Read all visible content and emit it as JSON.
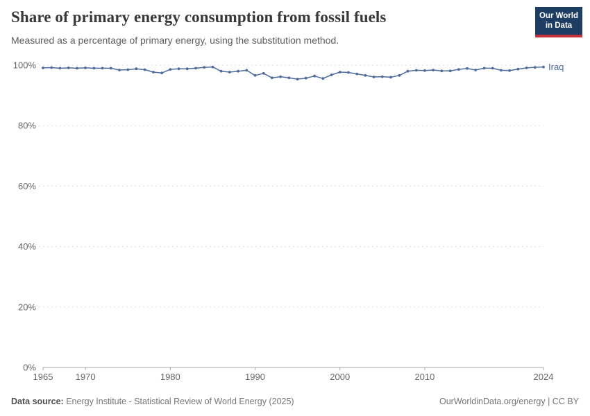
{
  "chart_data": {
    "type": "line",
    "title": "Share of primary energy consumption from fossil fuels",
    "subtitle": "Measured as a percentage of primary energy, using the substitution method.",
    "xlabel": "",
    "ylabel": "",
    "xlim": [
      1965,
      2024
    ],
    "ylim": [
      0,
      100
    ],
    "yticks": [
      0,
      20,
      40,
      60,
      80,
      100
    ],
    "ytick_labels": [
      "0%",
      "20%",
      "40%",
      "60%",
      "80%",
      "100%"
    ],
    "xticks": [
      1965,
      1970,
      1980,
      1990,
      2000,
      2010,
      2024
    ],
    "grid": "horizontal-dashed",
    "legend": "inline-end-label",
    "series": [
      {
        "name": "Iraq",
        "color": "#4c6a9c",
        "x": [
          1965,
          1966,
          1967,
          1968,
          1969,
          1970,
          1971,
          1972,
          1973,
          1974,
          1975,
          1976,
          1977,
          1978,
          1979,
          1980,
          1981,
          1982,
          1983,
          1984,
          1985,
          1986,
          1987,
          1988,
          1989,
          1990,
          1991,
          1992,
          1993,
          1994,
          1995,
          1996,
          1997,
          1998,
          1999,
          2000,
          2001,
          2002,
          2003,
          2004,
          2005,
          2006,
          2007,
          2008,
          2009,
          2010,
          2011,
          2012,
          2013,
          2014,
          2015,
          2016,
          2017,
          2018,
          2019,
          2020,
          2021,
          2022,
          2023,
          2024
        ],
        "values": [
          99.1,
          99.2,
          99.0,
          99.1,
          99.0,
          99.1,
          99.0,
          99.0,
          99.0,
          98.4,
          98.5,
          98.8,
          98.5,
          97.7,
          97.4,
          98.6,
          98.8,
          98.8,
          99.0,
          99.3,
          99.4,
          98.0,
          97.7,
          98.0,
          98.3,
          96.6,
          97.3,
          95.8,
          96.2,
          95.8,
          95.4,
          95.7,
          96.4,
          95.6,
          96.8,
          97.7,
          97.6,
          97.1,
          96.6,
          96.1,
          96.2,
          96.0,
          96.6,
          98.0,
          98.3,
          98.2,
          98.4,
          98.1,
          98.1,
          98.6,
          98.9,
          98.4,
          99.0,
          99.0,
          98.3,
          98.2,
          98.7,
          99.1,
          99.3,
          99.4
        ]
      }
    ]
  },
  "logo": {
    "line1": "Our World",
    "line2": "in Data",
    "bg": "#1d3d63",
    "stripe": "#c5313a"
  },
  "footer": {
    "source_label": "Data source:",
    "source_text": " Energy Institute - Statistical Review of World Energy (2025)",
    "credit": "OurWorldinData.org/energy | CC BY"
  },
  "colors": {
    "grid": "#dedede",
    "axis": "#a5a5a5",
    "tick_text": "#666666"
  }
}
